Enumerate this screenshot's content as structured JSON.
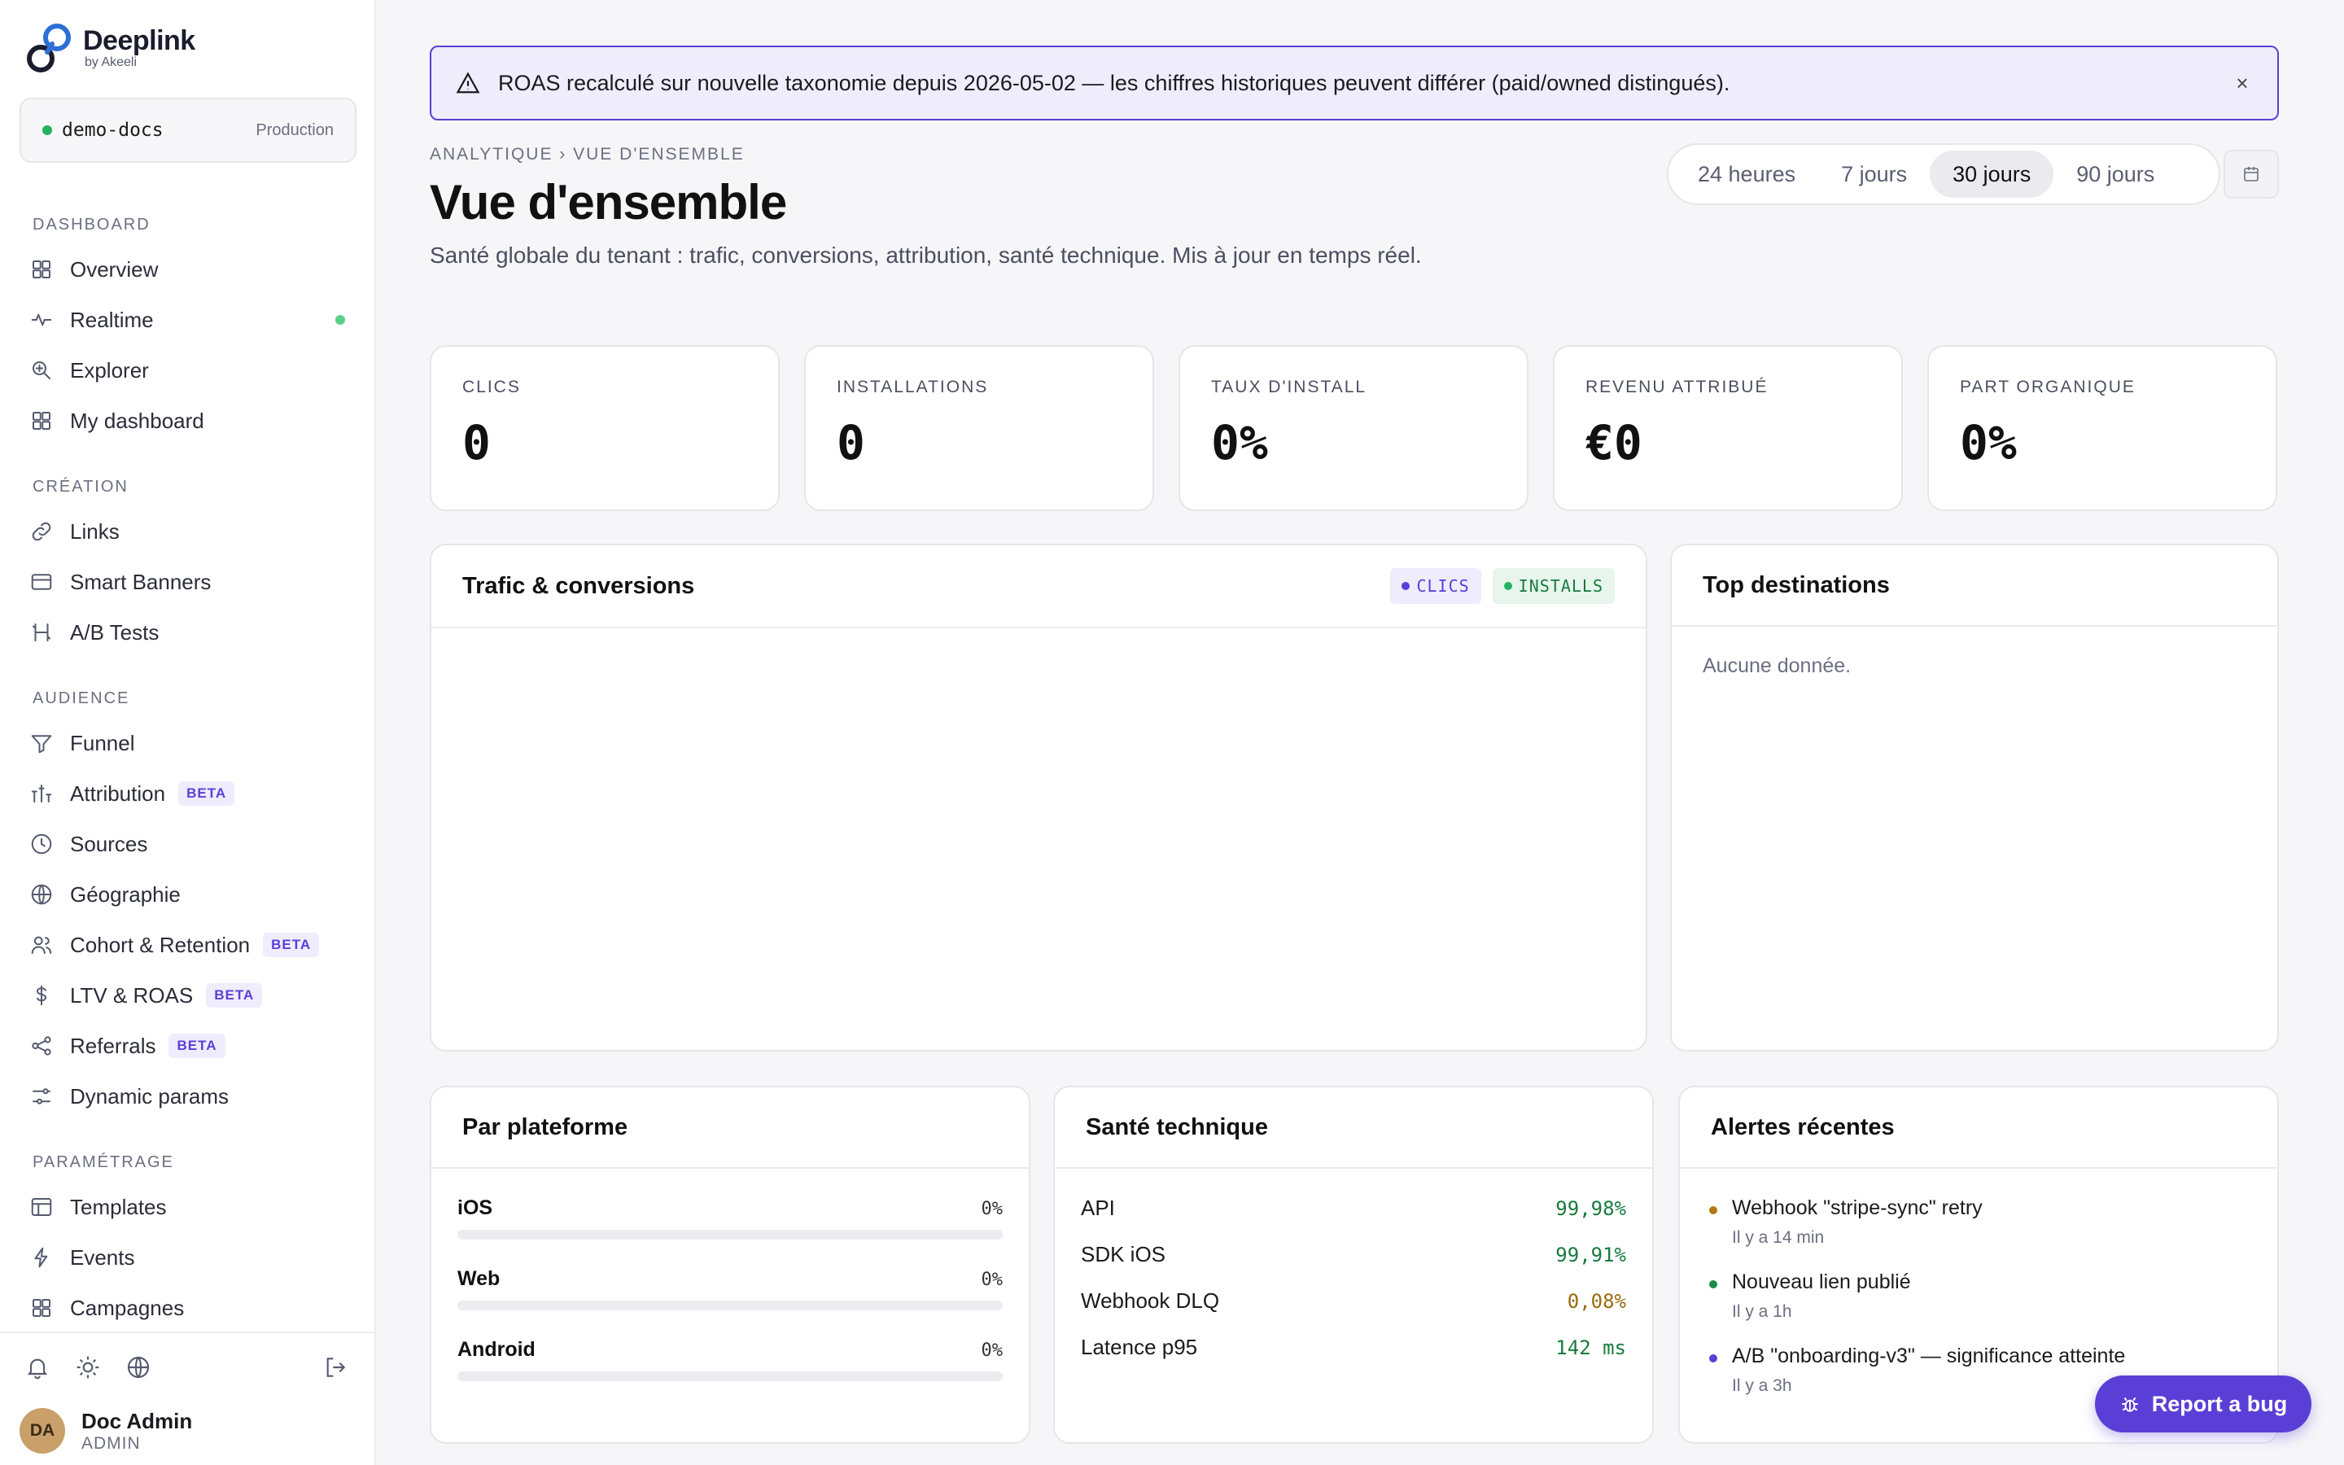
{
  "brand": {
    "name": "Deeplink",
    "sub": "by Akeeli"
  },
  "tenant": {
    "name": "demo-docs",
    "env": "Production"
  },
  "nav": {
    "sections": [
      {
        "title": "DASHBOARD",
        "items": [
          {
            "label": "Overview",
            "icon": "grid-icon"
          },
          {
            "label": "Realtime",
            "icon": "pulse-icon",
            "live": true
          },
          {
            "label": "Explorer",
            "icon": "zoom-icon"
          },
          {
            "label": "My dashboard",
            "icon": "grid-icon"
          }
        ]
      },
      {
        "title": "CRÉATION",
        "items": [
          {
            "label": "Links",
            "icon": "link-icon"
          },
          {
            "label": "Smart Banners",
            "icon": "banner-icon"
          },
          {
            "label": "A/B Tests",
            "icon": "split-icon"
          }
        ]
      },
      {
        "title": "AUDIENCE",
        "items": [
          {
            "label": "Funnel",
            "icon": "funnel-icon"
          },
          {
            "label": "Attribution",
            "icon": "attribution-icon",
            "badge": "BETA"
          },
          {
            "label": "Sources",
            "icon": "clock-icon"
          },
          {
            "label": "Géographie",
            "icon": "globe-icon"
          },
          {
            "label": "Cohort & Retention",
            "icon": "users-icon",
            "badge": "BETA"
          },
          {
            "label": "LTV & ROAS",
            "icon": "dollar-icon",
            "badge": "BETA"
          },
          {
            "label": "Referrals",
            "icon": "share-icon",
            "badge": "BETA"
          },
          {
            "label": "Dynamic params",
            "icon": "sliders-icon"
          }
        ]
      },
      {
        "title": "PARAMÉTRAGE",
        "items": [
          {
            "label": "Templates",
            "icon": "template-icon"
          },
          {
            "label": "Events",
            "icon": "bolt-icon"
          },
          {
            "label": "Campagnes",
            "icon": "grid-icon"
          }
        ]
      }
    ]
  },
  "user": {
    "initials": "DA",
    "name": "Doc Admin",
    "role": "ADMIN"
  },
  "banner": {
    "text": "ROAS recalculé sur nouvelle taxonomie depuis 2026-05-02 — les chiffres historiques peuvent différer (paid/owned distingués).",
    "close": "×"
  },
  "header": {
    "breadcrumb": "ANALYTIQUE › VUE D'ENSEMBLE",
    "title": "Vue d'ensemble",
    "description": "Santé globale du tenant : trafic, conversions, attribution, santé technique. Mis à jour en temps réel."
  },
  "range": {
    "options": [
      "24 heures",
      "7 jours",
      "30 jours",
      "90 jours"
    ],
    "selected": "30 jours"
  },
  "kpis": [
    {
      "label": "CLICS",
      "value": "0"
    },
    {
      "label": "INSTALLATIONS",
      "value": "0"
    },
    {
      "label": "TAUX D'INSTALL",
      "value": "0%"
    },
    {
      "label": "REVENU ATTRIBUÉ",
      "value": "€0"
    },
    {
      "label": "PART ORGANIQUE",
      "value": "0%"
    }
  ],
  "traffic": {
    "title": "Trafic & conversions",
    "legend": [
      "CLICS",
      "INSTALLS"
    ]
  },
  "destinations": {
    "title": "Top destinations",
    "empty": "Aucune donnée."
  },
  "platforms": {
    "title": "Par plateforme",
    "rows": [
      {
        "name": "iOS",
        "pct": "0%",
        "value": 0
      },
      {
        "name": "Web",
        "pct": "0%",
        "value": 0
      },
      {
        "name": "Android",
        "pct": "0%",
        "value": 0
      }
    ]
  },
  "health": {
    "title": "Santé technique",
    "rows": [
      {
        "name": "API",
        "value": "99,98%",
        "status": "ok"
      },
      {
        "name": "SDK iOS",
        "value": "99,91%",
        "status": "ok"
      },
      {
        "name": "Webhook DLQ",
        "value": "0,08%",
        "status": "warn"
      },
      {
        "name": "Latence p95",
        "value": "142 ms",
        "status": "ok"
      }
    ]
  },
  "alerts": {
    "title": "Alertes récentes",
    "items": [
      {
        "title": "Webhook \"stripe-sync\" retry",
        "time": "Il y a 14 min",
        "color": "#b07a10"
      },
      {
        "title": "Nouveau lien publié",
        "time": "Il y a 1h",
        "color": "#1e8a4a"
      },
      {
        "title": "A/B \"onboarding-v3\" — significance atteinte",
        "time": "Il y a 3h",
        "color": "#5a3fd6"
      }
    ]
  },
  "report_button": "Report a bug",
  "colors": {
    "accent": "#5a3fd6",
    "success": "#187a3e",
    "warning": "#9a6a0c"
  }
}
